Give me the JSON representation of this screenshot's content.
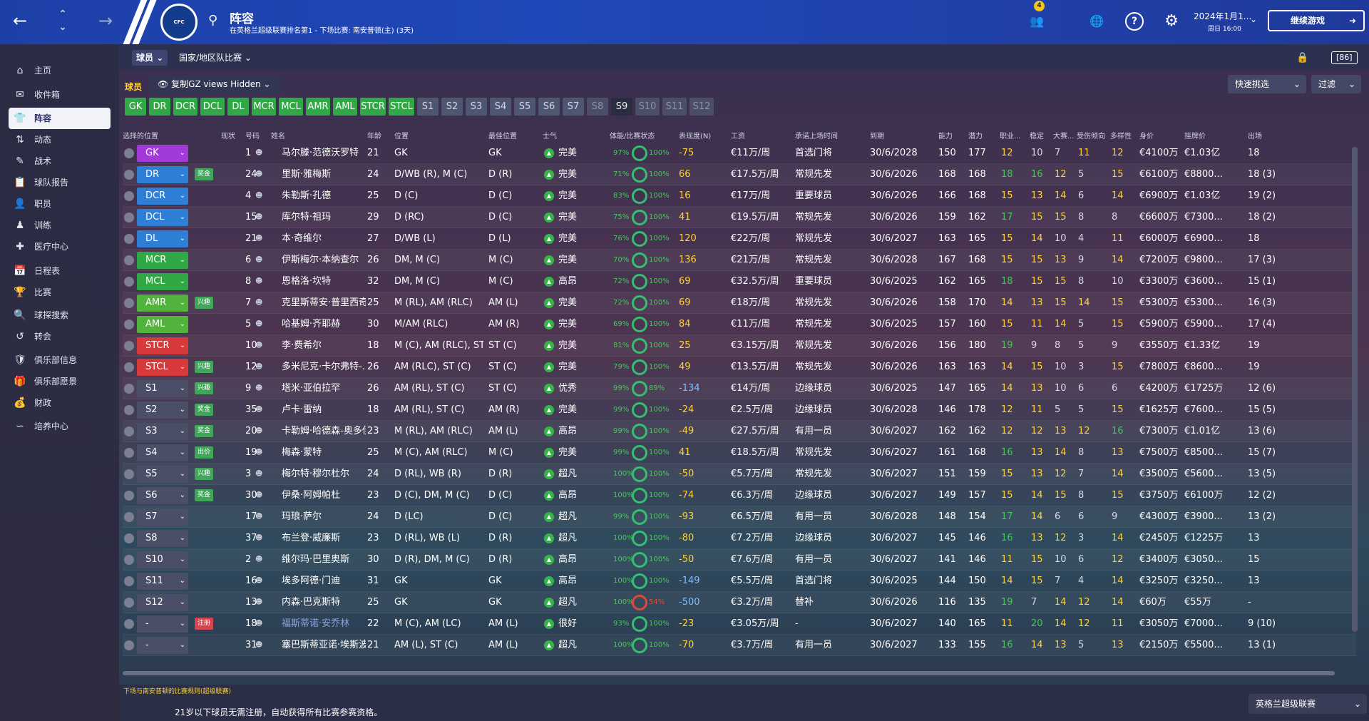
{
  "topbar": {
    "title": "阵容",
    "subtitle": "在英格兰超级联赛排名第1 - 下场比赛: 南安普顿(主) (3天)",
    "badge": "4",
    "date": "2024年1月1...",
    "weekday": "周日 16:00",
    "continue": "继续游戏"
  },
  "sidebar": {
    "items": [
      "主页",
      "收件箱",
      "阵容",
      "动态",
      "战术",
      "球队报告",
      "职员",
      "训练",
      "医疗中心",
      "日程表",
      "比赛",
      "球探搜索",
      "转会",
      "俱乐部信息",
      "俱乐部愿景",
      "财政",
      "培养中心"
    ]
  },
  "subtabs": {
    "players": "球员",
    "national": "国家/地区队比赛"
  },
  "toolbar": {
    "label": "球员",
    "view": "复制GZ views Hidden",
    "quick": "快速挑选",
    "filter": "过滤"
  },
  "positions": [
    "GK",
    "DR",
    "DCR",
    "DCL",
    "DL",
    "MCR",
    "MCL",
    "AMR",
    "AML",
    "STCR",
    "STCL",
    "S1",
    "S2",
    "S3",
    "S4",
    "S5",
    "S6",
    "S7",
    "S8",
    "S9",
    "S10",
    "S11",
    "S12"
  ],
  "headers": {
    "sel": "选择的位置",
    "status": "现状",
    "num": "号码",
    "name": "姓名",
    "age": "年龄",
    "pos": "位置",
    "best": "最佳位置",
    "morale": "士气",
    "cond": "体能/比赛状态",
    "form": "表现度(N)",
    "wage": "工资",
    "playtime": "承诺上场时间",
    "expires": "到期",
    "ca": "能力",
    "pa": "潜力",
    "prof": "职业...",
    "stab": "稳定",
    "big": "大赛...",
    "inj": "受伤倾向",
    "vers": "多样性",
    "value": "身价",
    "ask": "挂牌价",
    "apps": "出场"
  },
  "players": [
    {
      "slot": "GK",
      "status": "",
      "num": "1",
      "name": "马尔滕·范德沃罗特",
      "age": "21",
      "pos": "GK",
      "best": "GK",
      "morale": "完美",
      "cond": "97%",
      "sharp": "100%",
      "form": "-75",
      "wage": "€11万/周",
      "play": "首选门将",
      "exp": "30/6/2028",
      "ca": "150",
      "pa": "177",
      "prof": "12",
      "stab": "10",
      "big": "7",
      "inj": "11",
      "vers": "12",
      "value": "€4100万",
      "ask": "€1.03亿",
      "apps": "18"
    },
    {
      "slot": "DR",
      "status": "奖金",
      "num": "24",
      "name": "里斯·雅梅斯",
      "age": "24",
      "pos": "D/WB (R), M (C)",
      "best": "D (R)",
      "morale": "完美",
      "cond": "71%",
      "sharp": "100%",
      "form": "66",
      "wage": "€17.5万/周",
      "play": "常规先发",
      "exp": "30/6/2026",
      "ca": "168",
      "pa": "168",
      "prof": "18",
      "stab": "16",
      "big": "12",
      "inj": "5",
      "vers": "15",
      "value": "€6100万",
      "ask": "€8800...",
      "apps": "18 (3)"
    },
    {
      "slot": "DCR",
      "status": "",
      "num": "4",
      "name": "朱勒斯·孔德",
      "age": "25",
      "pos": "D (C)",
      "best": "D (C)",
      "morale": "完美",
      "cond": "83%",
      "sharp": "100%",
      "form": "16",
      "wage": "€17万/周",
      "play": "重要球员",
      "exp": "30/6/2026",
      "ca": "166",
      "pa": "168",
      "prof": "15",
      "stab": "13",
      "big": "14",
      "inj": "6",
      "vers": "14",
      "value": "€6900万",
      "ask": "€1.03亿",
      "apps": "19 (2)"
    },
    {
      "slot": "DCL",
      "status": "",
      "num": "15",
      "name": "库尔特·祖玛",
      "age": "29",
      "pos": "D (RC)",
      "best": "D (C)",
      "morale": "完美",
      "cond": "75%",
      "sharp": "100%",
      "form": "41",
      "wage": "€19.5万/周",
      "play": "常规先发",
      "exp": "30/6/2026",
      "ca": "159",
      "pa": "162",
      "prof": "17",
      "stab": "15",
      "big": "15",
      "inj": "8",
      "vers": "8",
      "value": "€6600万",
      "ask": "€7300...",
      "apps": "18 (2)"
    },
    {
      "slot": "DL",
      "status": "",
      "num": "21",
      "name": "本·奇维尔",
      "age": "27",
      "pos": "D/WB (L)",
      "best": "D (L)",
      "morale": "完美",
      "cond": "76%",
      "sharp": "100%",
      "form": "120",
      "wage": "€22万/周",
      "play": "常规先发",
      "exp": "30/6/2027",
      "ca": "163",
      "pa": "165",
      "prof": "15",
      "stab": "14",
      "big": "10",
      "inj": "4",
      "vers": "11",
      "value": "€6000万",
      "ask": "€6900...",
      "apps": "18"
    },
    {
      "slot": "MCR",
      "status": "",
      "num": "6",
      "name": "伊斯梅尔·本纳查尔",
      "age": "26",
      "pos": "DM, M (C)",
      "best": "M (C)",
      "morale": "完美",
      "cond": "70%",
      "sharp": "100%",
      "form": "136",
      "wage": "€21万/周",
      "play": "常规先发",
      "exp": "30/6/2028",
      "ca": "167",
      "pa": "168",
      "prof": "15",
      "stab": "15",
      "big": "13",
      "inj": "9",
      "vers": "14",
      "value": "€7200万",
      "ask": "€9800...",
      "apps": "17 (3)"
    },
    {
      "slot": "MCL",
      "status": "",
      "num": "8",
      "name": "恩格洛·坎特",
      "age": "32",
      "pos": "DM, M (C)",
      "best": "M (C)",
      "morale": "高昂",
      "cond": "72%",
      "sharp": "100%",
      "form": "69",
      "wage": "€32.5万/周",
      "play": "重要球员",
      "exp": "30/6/2025",
      "ca": "162",
      "pa": "165",
      "prof": "18",
      "stab": "15",
      "big": "15",
      "inj": "8",
      "vers": "10",
      "value": "€3300万",
      "ask": "€3600...",
      "apps": "15 (1)"
    },
    {
      "slot": "AMR",
      "status": "兴趣",
      "num": "7",
      "name": "克里斯蒂安·普里西奇",
      "age": "25",
      "pos": "M (RL), AM (RLC)",
      "best": "AM (L)",
      "morale": "完美",
      "cond": "72%",
      "sharp": "100%",
      "form": "69",
      "wage": "€18万/周",
      "play": "常规先发",
      "exp": "30/6/2026",
      "ca": "158",
      "pa": "170",
      "prof": "14",
      "stab": "13",
      "big": "15",
      "inj": "14",
      "vers": "15",
      "value": "€5300万",
      "ask": "€5300...",
      "apps": "16 (3)"
    },
    {
      "slot": "AML",
      "status": "",
      "num": "5",
      "name": "哈基姆·齐耶赫",
      "age": "30",
      "pos": "M/AM (RLC)",
      "best": "AM (R)",
      "morale": "完美",
      "cond": "69%",
      "sharp": "100%",
      "form": "84",
      "wage": "€11万/周",
      "play": "常规先发",
      "exp": "30/6/2025",
      "ca": "157",
      "pa": "160",
      "prof": "15",
      "stab": "11",
      "big": "14",
      "inj": "5",
      "vers": "15",
      "value": "€5900万",
      "ask": "€5900...",
      "apps": "17 (4)"
    },
    {
      "slot": "STCR",
      "status": "",
      "num": "10",
      "name": "李·费希尔",
      "age": "18",
      "pos": "M (C), AM (RLC), ST...",
      "best": "ST (C)",
      "morale": "完美",
      "cond": "81%",
      "sharp": "100%",
      "form": "25",
      "wage": "€3.15万/周",
      "play": "常规先发",
      "exp": "30/6/2026",
      "ca": "156",
      "pa": "180",
      "prof": "19",
      "stab": "9",
      "big": "8",
      "inj": "5",
      "vers": "9",
      "value": "€3550万",
      "ask": "€1.33亿",
      "apps": "19"
    },
    {
      "slot": "STCL",
      "status": "兴趣",
      "num": "12",
      "name": "多米尼克·卡尔弗特-...",
      "age": "26",
      "pos": "AM (RLC), ST (C)",
      "best": "ST (C)",
      "morale": "完美",
      "cond": "79%",
      "sharp": "100%",
      "form": "49",
      "wage": "€13.5万/周",
      "play": "常规先发",
      "exp": "30/6/2026",
      "ca": "163",
      "pa": "163",
      "prof": "14",
      "stab": "15",
      "big": "10",
      "inj": "3",
      "vers": "15",
      "value": "€7800万",
      "ask": "€8600...",
      "apps": "19"
    },
    {
      "slot": "S1",
      "status": "兴趣",
      "num": "9",
      "name": "塔米·亚伯拉罕",
      "age": "26",
      "pos": "AM (RL), ST (C)",
      "best": "ST (C)",
      "morale": "优秀",
      "cond": "99%",
      "sharp": "89%",
      "form": "-134",
      "wage": "€14万/周",
      "play": "边缘球员",
      "exp": "30/6/2025",
      "ca": "147",
      "pa": "165",
      "prof": "14",
      "stab": "13",
      "big": "10",
      "inj": "6",
      "vers": "6",
      "value": "€4200万",
      "ask": "€1725万",
      "apps": "12 (6)"
    },
    {
      "slot": "S2",
      "status": "奖金",
      "num": "35",
      "name": "卢卡·雷纳",
      "age": "18",
      "pos": "AM (RL), ST (C)",
      "best": "AM (R)",
      "morale": "完美",
      "cond": "99%",
      "sharp": "100%",
      "form": "-24",
      "wage": "€2.5万/周",
      "play": "边缘球员",
      "exp": "30/6/2028",
      "ca": "146",
      "pa": "178",
      "prof": "12",
      "stab": "11",
      "big": "5",
      "inj": "5",
      "vers": "15",
      "value": "€1625万",
      "ask": "€7600...",
      "apps": "15 (5)"
    },
    {
      "slot": "S3",
      "status": "奖金",
      "num": "20",
      "name": "卡勒姆·哈德森-奥多伊",
      "age": "23",
      "pos": "M (RL), AM (RLC)",
      "best": "AM (L)",
      "morale": "高昂",
      "cond": "99%",
      "sharp": "100%",
      "form": "-49",
      "wage": "€27.5万/周",
      "play": "有用一员",
      "exp": "30/6/2027",
      "ca": "162",
      "pa": "162",
      "prof": "12",
      "stab": "12",
      "big": "13",
      "inj": "12",
      "vers": "16",
      "value": "€7300万",
      "ask": "€1.01亿",
      "apps": "13 (6)"
    },
    {
      "slot": "S4",
      "status": "出价",
      "num": "19",
      "name": "梅森·蒙特",
      "age": "25",
      "pos": "M (C), AM (RLC)",
      "best": "M (C)",
      "morale": "完美",
      "cond": "99%",
      "sharp": "100%",
      "form": "41",
      "wage": "€18.5万/周",
      "play": "常规先发",
      "exp": "30/6/2027",
      "ca": "161",
      "pa": "168",
      "prof": "16",
      "stab": "13",
      "big": "14",
      "inj": "8",
      "vers": "13",
      "value": "€7500万",
      "ask": "€8500...",
      "apps": "15 (7)"
    },
    {
      "slot": "S5",
      "status": "兴趣",
      "num": "3",
      "name": "梅尔特·穆尔杜尔",
      "age": "24",
      "pos": "D (RL), WB (R)",
      "best": "D (R)",
      "morale": "超凡",
      "cond": "100%",
      "sharp": "100%",
      "form": "-50",
      "wage": "€5.7万/周",
      "play": "常规先发",
      "exp": "30/6/2027",
      "ca": "151",
      "pa": "159",
      "prof": "15",
      "stab": "13",
      "big": "12",
      "inj": "7",
      "vers": "14",
      "value": "€3500万",
      "ask": "€5600...",
      "apps": "13 (5)"
    },
    {
      "slot": "S6",
      "status": "奖金",
      "num": "30",
      "name": "伊桑·阿姆帕杜",
      "age": "23",
      "pos": "D (C), DM, M (C)",
      "best": "D (C)",
      "morale": "高昂",
      "cond": "100%",
      "sharp": "100%",
      "form": "-74",
      "wage": "€6.3万/周",
      "play": "边缘球员",
      "exp": "30/6/2027",
      "ca": "149",
      "pa": "157",
      "prof": "15",
      "stab": "14",
      "big": "15",
      "inj": "8",
      "vers": "15",
      "value": "€3750万",
      "ask": "€6100万",
      "apps": "12 (2)"
    },
    {
      "slot": "S7",
      "status": "",
      "num": "17",
      "name": "玛琅·萨尔",
      "age": "24",
      "pos": "D (LC)",
      "best": "D (C)",
      "morale": "超凡",
      "cond": "99%",
      "sharp": "100%",
      "form": "-93",
      "wage": "€6.5万/周",
      "play": "有用一员",
      "exp": "30/6/2028",
      "ca": "148",
      "pa": "154",
      "prof": "17",
      "stab": "14",
      "big": "6",
      "inj": "6",
      "vers": "9",
      "value": "€4300万",
      "ask": "€3900...",
      "apps": "13 (2)"
    },
    {
      "slot": "S8",
      "status": "",
      "num": "37",
      "name": "布兰登·威廉斯",
      "age": "23",
      "pos": "D (RL), WB (L)",
      "best": "D (R)",
      "morale": "超凡",
      "cond": "100%",
      "sharp": "100%",
      "form": "-80",
      "wage": "€7.2万/周",
      "play": "边缘球员",
      "exp": "30/6/2027",
      "ca": "145",
      "pa": "146",
      "prof": "16",
      "stab": "13",
      "big": "12",
      "inj": "3",
      "vers": "14",
      "value": "€2450万",
      "ask": "€1225万",
      "apps": "13"
    },
    {
      "slot": "S10",
      "status": "",
      "num": "2",
      "name": "维尔玛·巴里奥斯",
      "age": "30",
      "pos": "D (R), DM, M (C)",
      "best": "D (R)",
      "morale": "高昂",
      "cond": "100%",
      "sharp": "100%",
      "form": "-50",
      "wage": "€7.6万/周",
      "play": "有用一员",
      "exp": "30/6/2027",
      "ca": "141",
      "pa": "146",
      "prof": "11",
      "stab": "15",
      "big": "10",
      "inj": "6",
      "vers": "12",
      "value": "€3400万",
      "ask": "€3050...",
      "apps": "15"
    },
    {
      "slot": "S11",
      "status": "",
      "num": "16",
      "name": "埃多阿德·门迪",
      "age": "31",
      "pos": "GK",
      "best": "GK",
      "morale": "高昂",
      "cond": "100%",
      "sharp": "100%",
      "form": "-149",
      "wage": "€5.5万/周",
      "play": "首选门将",
      "exp": "30/6/2025",
      "ca": "144",
      "pa": "150",
      "prof": "14",
      "stab": "15",
      "big": "7",
      "inj": "4",
      "vers": "14",
      "value": "€3250万",
      "ask": "€3250...",
      "apps": "13"
    },
    {
      "slot": "S12",
      "status": "",
      "num": "13",
      "name": "内森·巴克斯特",
      "age": "25",
      "pos": "GK",
      "best": "GK",
      "morale": "超凡",
      "cond": "100%",
      "sharp": "54%",
      "form": "-500",
      "wage": "€3.2万/周",
      "play": "替补",
      "exp": "30/6/2026",
      "ca": "116",
      "pa": "135",
      "prof": "19",
      "stab": "7",
      "big": "14",
      "inj": "12",
      "vers": "14",
      "value": "€60万",
      "ask": "€55万",
      "apps": "-"
    },
    {
      "slot": "-",
      "status": "注册",
      "num": "18",
      "name": "福斯蒂诺·安乔林",
      "age": "22",
      "pos": "M (C), AM (LC)",
      "best": "AM (L)",
      "morale": "很好",
      "cond": "93%",
      "sharp": "100%",
      "form": "-23",
      "wage": "€3.05万/周",
      "play": "-",
      "exp": "30/6/2027",
      "ca": "140",
      "pa": "165",
      "prof": "11",
      "stab": "20",
      "big": "14",
      "inj": "12",
      "vers": "11",
      "value": "€3050万",
      "ask": "€7000...",
      "apps": "9 (10)"
    },
    {
      "slot": "-",
      "status": "",
      "num": "31",
      "name": "塞巴斯蒂亚诺·埃斯波...",
      "age": "21",
      "pos": "AM (L), ST (C)",
      "best": "AM (L)",
      "morale": "超凡",
      "cond": "100%",
      "sharp": "100%",
      "form": "-70",
      "wage": "€3.7万/周",
      "play": "有用一员",
      "exp": "30/6/2027",
      "ca": "133",
      "pa": "155",
      "prof": "16",
      "stab": "14",
      "big": "13",
      "inj": "5",
      "vers": "13",
      "value": "€2150万",
      "ask": "€5500...",
      "apps": "13 (1)"
    }
  ],
  "footer": {
    "note": "下场与南安普顿的比赛规则(超级联赛)",
    "message": "21岁以下球员无需注册，自动获得所有比赛参赛资格。",
    "league": "英格兰超级联赛"
  }
}
